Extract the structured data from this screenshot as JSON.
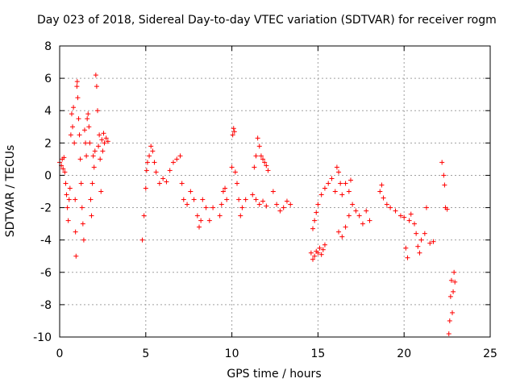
{
  "chart_data": {
    "type": "scatter",
    "title": "Day 023 of 2018, Sidereal Day-to-day VTEC variation (SDTVAR) for receiver rogm",
    "xlabel": "GPS time / hours",
    "ylabel": "SDTVAR / TECUs",
    "xlim": [
      0,
      25
    ],
    "ylim": [
      -10,
      8
    ],
    "xticks": [
      "0",
      "5",
      "10",
      "15",
      "20",
      "25"
    ],
    "yticks": [
      "8",
      "6",
      "4",
      "2",
      "0",
      "-2",
      "-4",
      "-6",
      "-8",
      "-10"
    ],
    "grid": true,
    "marker": "+",
    "color": "#ff0000",
    "series": [
      {
        "name": "SDTVAR",
        "points": [
          [
            0.0,
            0.8
          ],
          [
            0.1,
            0.6
          ],
          [
            0.15,
            1.0
          ],
          [
            0.2,
            0.4
          ],
          [
            0.25,
            1.1
          ],
          [
            0.3,
            0.2
          ],
          [
            0.35,
            -0.5
          ],
          [
            0.4,
            -1.2
          ],
          [
            0.45,
            -2.0
          ],
          [
            0.5,
            -2.8
          ],
          [
            0.55,
            -1.5
          ],
          [
            0.6,
            -0.8
          ],
          [
            0.65,
            2.5
          ],
          [
            0.7,
            3.8
          ],
          [
            0.75,
            3.0
          ],
          [
            0.8,
            4.2
          ],
          [
            0.85,
            2.0
          ],
          [
            0.9,
            -1.5
          ],
          [
            0.92,
            -3.5
          ],
          [
            0.95,
            -5.0
          ],
          [
            1.0,
            5.5
          ],
          [
            1.02,
            5.8
          ],
          [
            1.05,
            4.8
          ],
          [
            1.1,
            3.5
          ],
          [
            1.15,
            2.5
          ],
          [
            1.2,
            1.0
          ],
          [
            1.25,
            -0.5
          ],
          [
            1.3,
            -2.0
          ],
          [
            1.35,
            -3.0
          ],
          [
            1.4,
            -4.0
          ],
          [
            1.45,
            2.8
          ],
          [
            1.5,
            2.0
          ],
          [
            1.55,
            1.2
          ],
          [
            1.6,
            3.5
          ],
          [
            1.65,
            3.8
          ],
          [
            1.7,
            3.0
          ],
          [
            1.75,
            2.0
          ],
          [
            1.8,
            -1.5
          ],
          [
            1.85,
            -2.5
          ],
          [
            1.9,
            -0.5
          ],
          [
            1.95,
            1.2
          ],
          [
            2.0,
            0.5
          ],
          [
            2.05,
            1.5
          ],
          [
            2.1,
            6.2
          ],
          [
            2.15,
            5.5
          ],
          [
            2.2,
            4.0
          ],
          [
            2.25,
            1.8
          ],
          [
            2.3,
            2.5
          ],
          [
            2.35,
            1.0
          ],
          [
            2.4,
            -1.0
          ],
          [
            2.45,
            2.2
          ],
          [
            2.5,
            1.5
          ],
          [
            2.55,
            2.6
          ],
          [
            2.6,
            2.0
          ],
          [
            2.7,
            2.3
          ],
          [
            2.8,
            2.1
          ],
          [
            4.8,
            -4.0
          ],
          [
            4.9,
            -2.5
          ],
          [
            5.0,
            -0.8
          ],
          [
            5.05,
            0.3
          ],
          [
            5.1,
            0.8
          ],
          [
            5.2,
            1.2
          ],
          [
            5.3,
            1.8
          ],
          [
            5.4,
            1.5
          ],
          [
            5.5,
            0.8
          ],
          [
            5.6,
            0.2
          ],
          [
            5.8,
            -0.5
          ],
          [
            6.0,
            -0.2
          ],
          [
            6.2,
            -0.4
          ],
          [
            6.4,
            0.3
          ],
          [
            6.6,
            0.8
          ],
          [
            6.8,
            1.0
          ],
          [
            7.0,
            1.2
          ],
          [
            7.1,
            -0.5
          ],
          [
            7.2,
            -1.5
          ],
          [
            7.4,
            -1.8
          ],
          [
            7.6,
            -1.0
          ],
          [
            7.8,
            -1.5
          ],
          [
            8.0,
            -2.5
          ],
          [
            8.1,
            -3.2
          ],
          [
            8.2,
            -2.8
          ],
          [
            8.3,
            -1.5
          ],
          [
            8.5,
            -2.0
          ],
          [
            8.7,
            -2.8
          ],
          [
            8.9,
            -2.0
          ],
          [
            9.3,
            -2.5
          ],
          [
            9.4,
            -1.8
          ],
          [
            9.5,
            -1.0
          ],
          [
            9.6,
            -0.8
          ],
          [
            9.7,
            -1.5
          ],
          [
            10.0,
            0.5
          ],
          [
            10.05,
            2.5
          ],
          [
            10.1,
            2.9
          ],
          [
            10.15,
            2.7
          ],
          [
            10.2,
            0.2
          ],
          [
            10.3,
            -0.5
          ],
          [
            10.4,
            -1.5
          ],
          [
            10.5,
            -2.5
          ],
          [
            10.6,
            -2.0
          ],
          [
            10.8,
            -1.5
          ],
          [
            11.3,
            0.5
          ],
          [
            11.4,
            1.2
          ],
          [
            11.5,
            2.3
          ],
          [
            11.6,
            1.8
          ],
          [
            11.7,
            1.2
          ],
          [
            11.8,
            1.0
          ],
          [
            11.9,
            0.8
          ],
          [
            12.0,
            0.6
          ],
          [
            12.1,
            0.3
          ],
          [
            11.2,
            -1.2
          ],
          [
            11.4,
            -1.5
          ],
          [
            11.6,
            -1.8
          ],
          [
            11.8,
            -1.6
          ],
          [
            12.0,
            -1.9
          ],
          [
            12.4,
            -1.0
          ],
          [
            12.6,
            -1.8
          ],
          [
            12.8,
            -2.2
          ],
          [
            13.0,
            -2.0
          ],
          [
            13.2,
            -1.6
          ],
          [
            13.4,
            -1.8
          ],
          [
            14.6,
            -4.8
          ],
          [
            14.7,
            -5.2
          ],
          [
            14.8,
            -5.0
          ],
          [
            14.9,
            -4.7
          ],
          [
            15.0,
            -4.8
          ],
          [
            15.1,
            -4.5
          ],
          [
            15.2,
            -4.9
          ],
          [
            15.3,
            -4.6
          ],
          [
            15.4,
            -4.3
          ],
          [
            14.7,
            -3.3
          ],
          [
            14.8,
            -2.8
          ],
          [
            14.9,
            -2.3
          ],
          [
            15.0,
            -1.8
          ],
          [
            15.2,
            -1.2
          ],
          [
            15.4,
            -0.8
          ],
          [
            15.6,
            -0.5
          ],
          [
            15.8,
            -0.2
          ],
          [
            16.0,
            -1.0
          ],
          [
            16.1,
            0.5
          ],
          [
            16.2,
            0.2
          ],
          [
            16.3,
            -0.5
          ],
          [
            16.4,
            -1.2
          ],
          [
            16.2,
            -3.5
          ],
          [
            16.4,
            -3.8
          ],
          [
            16.6,
            -3.2
          ],
          [
            16.8,
            -2.5
          ],
          [
            16.6,
            -0.5
          ],
          [
            16.8,
            -1.0
          ],
          [
            16.9,
            -0.3
          ],
          [
            17.0,
            -1.8
          ],
          [
            17.2,
            -2.2
          ],
          [
            17.4,
            -2.5
          ],
          [
            17.6,
            -3.0
          ],
          [
            17.8,
            -2.2
          ],
          [
            18.0,
            -2.8
          ],
          [
            18.6,
            -1.0
          ],
          [
            18.7,
            -0.6
          ],
          [
            18.8,
            -1.4
          ],
          [
            19.0,
            -1.8
          ],
          [
            19.2,
            -2.0
          ],
          [
            19.5,
            -2.2
          ],
          [
            19.8,
            -2.5
          ],
          [
            20.0,
            -2.6
          ],
          [
            20.1,
            -4.5
          ],
          [
            20.2,
            -5.1
          ],
          [
            20.3,
            -2.8
          ],
          [
            20.4,
            -2.4
          ],
          [
            20.6,
            -3.0
          ],
          [
            20.7,
            -3.6
          ],
          [
            20.8,
            -4.4
          ],
          [
            20.9,
            -4.8
          ],
          [
            21.0,
            -4.0
          ],
          [
            21.2,
            -3.6
          ],
          [
            21.5,
            -4.2
          ],
          [
            21.7,
            -4.1
          ],
          [
            21.3,
            -2.0
          ],
          [
            22.2,
            0.8
          ],
          [
            22.3,
            0.0
          ],
          [
            22.35,
            -0.6
          ],
          [
            22.4,
            -2.0
          ],
          [
            22.5,
            -2.1
          ],
          [
            22.6,
            -9.8
          ],
          [
            22.65,
            -9.0
          ],
          [
            22.7,
            -7.5
          ],
          [
            22.75,
            -6.5
          ],
          [
            22.8,
            -8.5
          ],
          [
            22.85,
            -7.2
          ],
          [
            22.9,
            -6.0
          ],
          [
            22.95,
            -6.6
          ]
        ]
      }
    ]
  }
}
